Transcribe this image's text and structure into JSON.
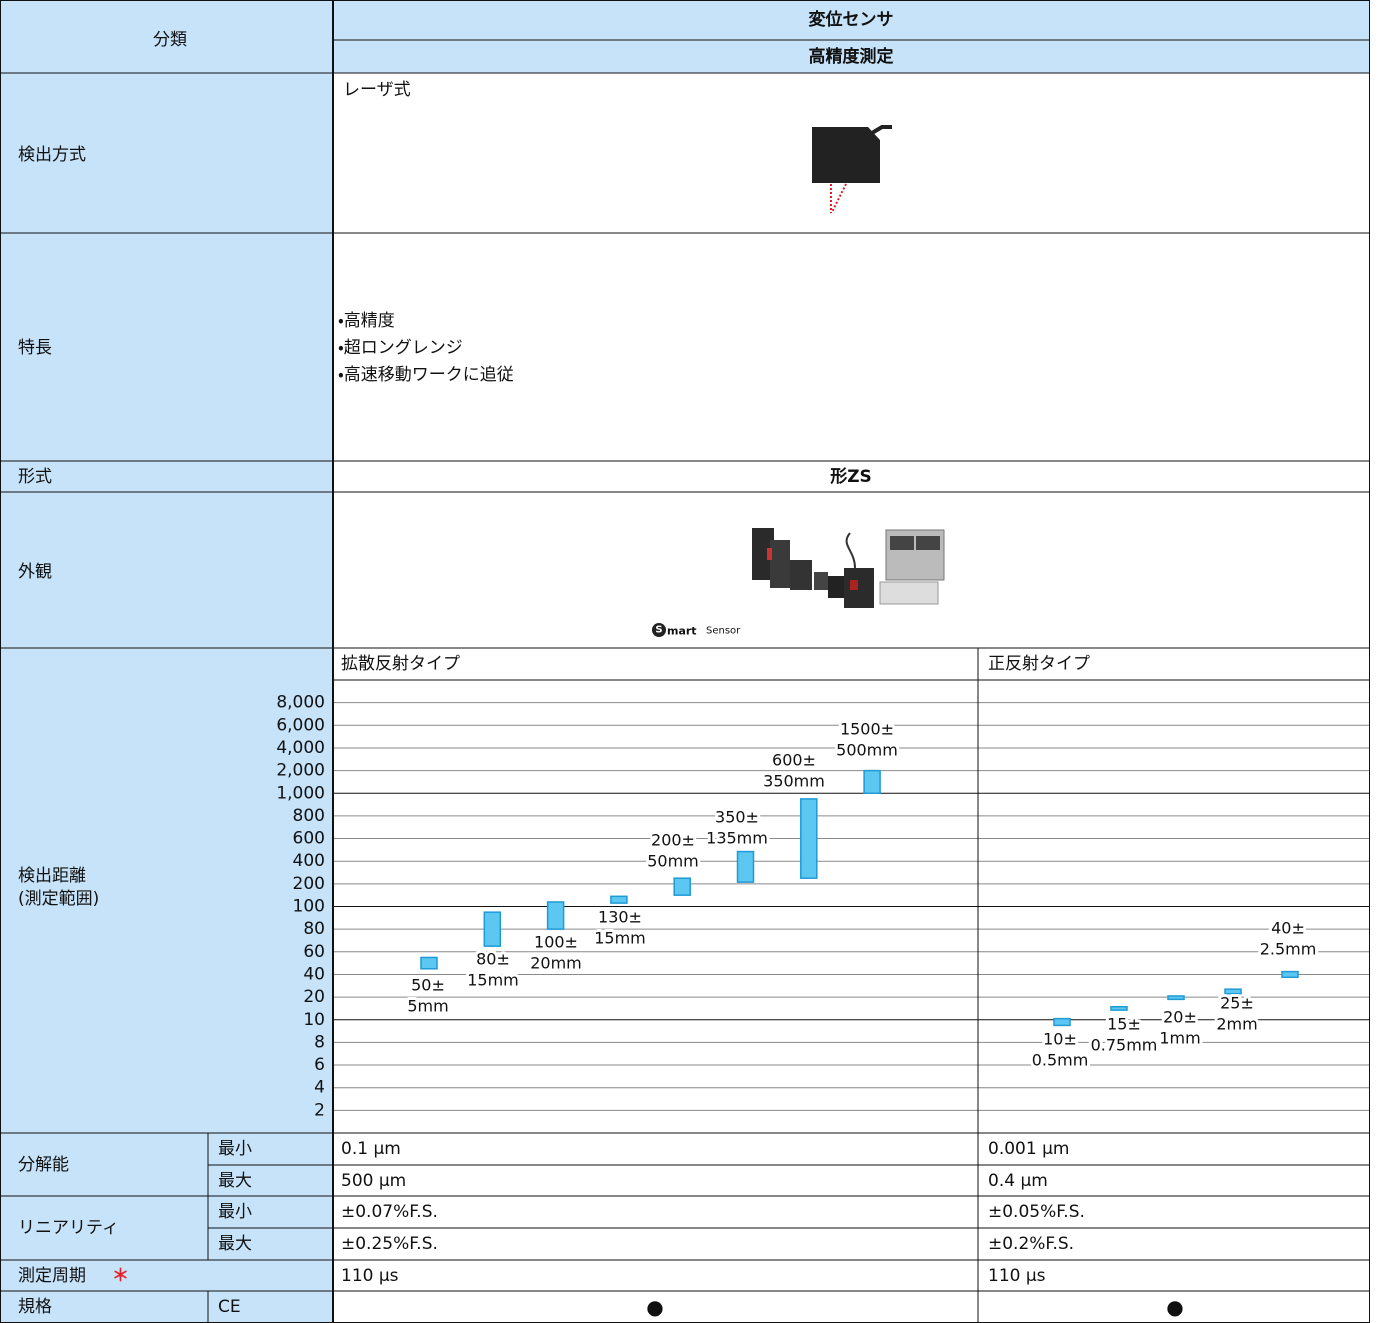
{
  "table": {
    "header": {
      "category": "分類",
      "sensor": "変位センサ",
      "measurement": "高精度測定"
    },
    "detection_method": {
      "label": "検出方式",
      "value": "レーザ式"
    },
    "features": {
      "label": "特長",
      "items": [
        "・高精度",
        "・超ロングレンジ",
        "・高速移動ワークに追従"
      ]
    },
    "model": {
      "label": "形式",
      "value": "形ZS"
    },
    "appearance": {
      "label": "外観",
      "logo_mark": "S",
      "logo_bold": "mart",
      "logo_text": "Sensor"
    },
    "distance": {
      "label": "検出距離",
      "sublabel": "(測定範囲)"
    },
    "resolution": {
      "label": "分解能",
      "rows": [
        [
          "最小",
          "0.1 μm",
          "0.001 μm"
        ],
        [
          "最大",
          "500 μm",
          "0.4 μm"
        ]
      ]
    },
    "linearity": {
      "label": "リニアリティ",
      "rows": [
        [
          "最小",
          "±0.07%F.S.",
          "±0.05%F.S."
        ],
        [
          "最大",
          "±0.25%F.S.",
          "±0.2%F.S."
        ]
      ]
    },
    "cycle": {
      "label": "測定周期",
      "note": "＊",
      "values": [
        "110 μs",
        "110 μs"
      ]
    },
    "standard": {
      "label": "規格",
      "name": "CE",
      "values": [
        "●",
        "●"
      ]
    }
  },
  "chart_data": {
    "type": "range",
    "ylim": [
      0,
      10000
    ],
    "yticks": [
      2,
      4,
      6,
      8,
      10,
      20,
      40,
      60,
      80,
      100,
      200,
      400,
      600,
      800,
      {
        "value": 1000,
        "label": "1,000"
      },
      {
        "value": 2000,
        "label": "2,000"
      },
      {
        "value": 4000,
        "label": "4,000"
      },
      {
        "value": 6000,
        "label": "6,000"
      },
      {
        "value": 8000,
        "label": "8,000"
      }
    ],
    "grid": true,
    "series": [
      {
        "name": "拡散反射タイプ",
        "color": "#5cc8f2",
        "values": [
          50,
          80,
          100,
          130,
          200,
          350,
          600,
          1500
        ],
        "errors": [
          5,
          15,
          20,
          15,
          50,
          135,
          350,
          500
        ],
        "value_labels": [
          [
            "50±",
            "5mm"
          ],
          [
            "80±",
            "15mm"
          ],
          [
            "100±",
            "20mm"
          ],
          [
            "130±",
            "15mm"
          ],
          [
            "200±",
            "50mm"
          ],
          [
            "350±",
            "135mm"
          ],
          [
            "600±",
            "350mm"
          ],
          [
            "1500±",
            "500mm"
          ]
        ]
      },
      {
        "name": "正反射タイプ",
        "color": "#5cc8f2",
        "values": [
          10,
          15,
          20,
          25,
          40
        ],
        "errors": [
          0.5,
          0.75,
          1,
          2,
          2.5
        ],
        "value_labels": [
          [
            "10±",
            "0.5mm"
          ],
          [
            "15±",
            "0.75mm"
          ],
          [
            "20±",
            "1mm"
          ],
          [
            "25±",
            "2mm"
          ],
          [
            "40±",
            "2.5mm"
          ]
        ]
      }
    ]
  }
}
